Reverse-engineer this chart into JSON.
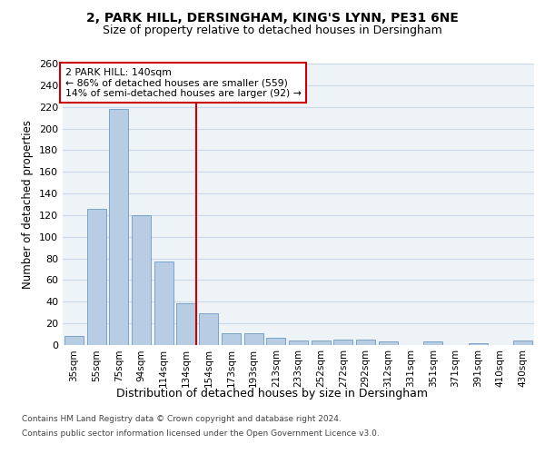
{
  "title_line1": "2, PARK HILL, DERSINGHAM, KING'S LYNN, PE31 6NE",
  "title_line2": "Size of property relative to detached houses in Dersingham",
  "xlabel": "Distribution of detached houses by size in Dersingham",
  "ylabel": "Number of detached properties",
  "categories": [
    "35sqm",
    "55sqm",
    "75sqm",
    "94sqm",
    "114sqm",
    "134sqm",
    "154sqm",
    "173sqm",
    "193sqm",
    "213sqm",
    "233sqm",
    "252sqm",
    "272sqm",
    "292sqm",
    "312sqm",
    "331sqm",
    "351sqm",
    "371sqm",
    "391sqm",
    "410sqm",
    "430sqm"
  ],
  "values": [
    8,
    126,
    218,
    120,
    77,
    39,
    29,
    11,
    11,
    7,
    4,
    4,
    5,
    5,
    3,
    0,
    3,
    0,
    2,
    0,
    4
  ],
  "bar_color": "#b8cce4",
  "bar_edge_color": "#7ba3c8",
  "vline_color": "#cc0000",
  "vline_pos": 5.43,
  "annotation_title": "2 PARK HILL: 140sqm",
  "annotation_line2": "← 86% of detached houses are smaller (559)",
  "annotation_line3": "14% of semi-detached houses are larger (92) →",
  "annotation_box_color": "#cc0000",
  "ylim": [
    0,
    260
  ],
  "yticks": [
    0,
    20,
    40,
    60,
    80,
    100,
    120,
    140,
    160,
    180,
    200,
    220,
    240,
    260
  ],
  "grid_color": "#c8d8e8",
  "footer_line1": "Contains HM Land Registry data © Crown copyright and database right 2024.",
  "footer_line2": "Contains public sector information licensed under the Open Government Licence v3.0.",
  "bg_color": "#eef3f8",
  "fig_bg_color": "#ffffff"
}
